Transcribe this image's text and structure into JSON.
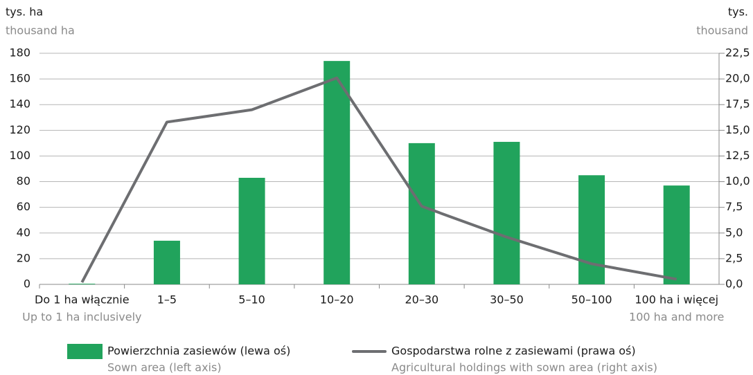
{
  "chart_data": {
    "type": "bar_line",
    "y_label": "tys. ha",
    "y_label_en": "thousand ha",
    "y2_label": "tys.",
    "y2_label_en": "thousand",
    "categories": [
      "Do 1 ha włącznie",
      "1–5",
      "5–10",
      "10–20",
      "20–30",
      "30–50",
      "50–100",
      "100 ha i więcej"
    ],
    "categories_en": [
      "Up to 1 ha inclusively",
      null,
      null,
      null,
      null,
      null,
      null,
      "100 ha and more"
    ],
    "series": [
      {
        "name": "Powierzchnia zasiewów (lewa oś)",
        "name_en": "Sown area (left axis)",
        "type": "bar",
        "color": "#21a35c",
        "axis": "y",
        "values": [
          0.5,
          34,
          83,
          174,
          110,
          111,
          85,
          77
        ]
      },
      {
        "name": "Gospodarstwa rolne z zasiewami (prawa oś)",
        "name_en": "Agricultural holdings with sown area (right axis)",
        "type": "line",
        "color": "#6d6e71",
        "axis": "y2",
        "values": [
          0.2,
          15.8,
          17.0,
          20.1,
          7.6,
          4.6,
          2.0,
          0.5
        ]
      }
    ],
    "ylim": [
      0,
      180
    ],
    "yticks": [
      0,
      20,
      40,
      60,
      80,
      100,
      120,
      140,
      160,
      180
    ],
    "y2lim": [
      0,
      22.5
    ],
    "y2ticks": [
      {
        "value": 0,
        "label": "0,0"
      },
      {
        "value": 2.5,
        "label": "2,5"
      },
      {
        "value": 5,
        "label": "5,0"
      },
      {
        "value": 7.5,
        "label": "7,5"
      },
      {
        "value": 10,
        "label": "10,0"
      },
      {
        "value": 12.5,
        "label": "12,5"
      },
      {
        "value": 15,
        "label": "15,0"
      },
      {
        "value": 17.5,
        "label": "17,5"
      },
      {
        "value": 20,
        "label": "20,0"
      },
      {
        "value": 22.5,
        "label": "22,5"
      }
    ],
    "grid": true
  }
}
